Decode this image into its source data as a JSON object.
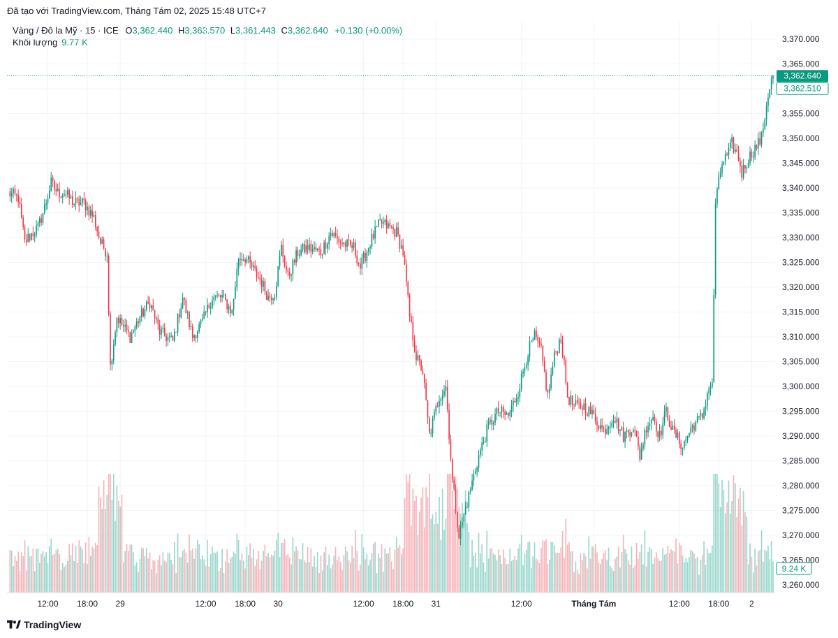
{
  "header": {
    "created_text": "Đã tạo với TradingView.com, Tháng Tám 02, 2025 15:48 UTC+7"
  },
  "legend": {
    "symbol": "Vàng / Đô la Mỹ · 15 · ICE",
    "o_label": "O",
    "o_value": "3,362.440",
    "h_label": "H",
    "h_value": "3,363.570",
    "l_label": "L",
    "l_value": "3,361.443",
    "c_label": "C",
    "c_value": "3,362.640",
    "change": "+0.130 (+0.00%)",
    "volume_label": "Khối lượng",
    "volume_value": "9.77 K"
  },
  "price_tags": {
    "last_price": "3,362.640",
    "prev_price": "3,362.510",
    "volume_tag": "9.24 K"
  },
  "brand": {
    "name": "TradingView"
  },
  "colors": {
    "up": "#089981",
    "down": "#f23645",
    "up_volume": "#9ad7cc",
    "down_volume": "#f7b3b9",
    "grid": "#f0f3fa",
    "text": "#131722"
  },
  "chart_data": {
    "type": "candlestick",
    "interval": "15m",
    "ylim": [
      3258,
      3371
    ],
    "y_ticks": [
      3260,
      3265,
      3270,
      3275,
      3280,
      3285,
      3290,
      3295,
      3300,
      3305,
      3310,
      3315,
      3320,
      3325,
      3330,
      3335,
      3340,
      3345,
      3350,
      3355,
      3360,
      3365,
      3370
    ],
    "y_tick_labels": [
      "3,260.000",
      "3,265.000",
      "3,270.000",
      "3,275.000",
      "3,280.000",
      "3,285.000",
      "3,290.000",
      "3,295.000",
      "3,300.000",
      "3,305.000",
      "3,310.000",
      "3,315.000",
      "3,320.000",
      "3,325.000",
      "3,330.000",
      "3,335.000",
      "3,340.000",
      "3,345.000",
      "3,350.000",
      "3,355.000",
      "3,360.000",
      "3,365.000",
      "3,370.000"
    ],
    "x_ticks": [
      {
        "label": "12:00",
        "index": 24
      },
      {
        "label": "18:00",
        "index": 48
      },
      {
        "label": "29",
        "index": 68
      },
      {
        "label": "12:00",
        "index": 120
      },
      {
        "label": "18:00",
        "index": 144
      },
      {
        "label": "30",
        "index": 164
      },
      {
        "label": "12:00",
        "index": 216
      },
      {
        "label": "18:00",
        "index": 240
      },
      {
        "label": "31",
        "index": 260
      },
      {
        "label": "12:00",
        "index": 312
      },
      {
        "label": "Tháng Tám",
        "index": 356
      },
      {
        "label": "12:00",
        "index": 408
      },
      {
        "label": "18:00",
        "index": 432
      },
      {
        "label": "2",
        "index": 452
      }
    ],
    "close_anchors": [
      [
        0,
        3339
      ],
      [
        6,
        3338
      ],
      [
        10,
        3329
      ],
      [
        12,
        3330
      ],
      [
        18,
        3332
      ],
      [
        22,
        3336
      ],
      [
        26,
        3341
      ],
      [
        30,
        3339
      ],
      [
        34,
        3339
      ],
      [
        40,
        3337
      ],
      [
        46,
        3337
      ],
      [
        52,
        3334
      ],
      [
        56,
        3329
      ],
      [
        60,
        3327
      ],
      [
        62,
        3304
      ],
      [
        66,
        3314
      ],
      [
        70,
        3312
      ],
      [
        74,
        3310
      ],
      [
        80,
        3314
      ],
      [
        86,
        3317
      ],
      [
        92,
        3311
      ],
      [
        100,
        3309
      ],
      [
        106,
        3318
      ],
      [
        112,
        3310
      ],
      [
        118,
        3313
      ],
      [
        124,
        3318
      ],
      [
        130,
        3318
      ],
      [
        136,
        3315
      ],
      [
        140,
        3326
      ],
      [
        144,
        3326
      ],
      [
        148,
        3324
      ],
      [
        154,
        3321
      ],
      [
        158,
        3318
      ],
      [
        162,
        3319
      ],
      [
        166,
        3328
      ],
      [
        170,
        3322
      ],
      [
        176,
        3327
      ],
      [
        182,
        3328
      ],
      [
        190,
        3327
      ],
      [
        196,
        3331
      ],
      [
        202,
        3329
      ],
      [
        210,
        3328
      ],
      [
        214,
        3324
      ],
      [
        220,
        3329
      ],
      [
        226,
        3333
      ],
      [
        232,
        3332
      ],
      [
        236,
        3331
      ],
      [
        240,
        3327
      ],
      [
        244,
        3314
      ],
      [
        248,
        3306
      ],
      [
        252,
        3303
      ],
      [
        256,
        3290
      ],
      [
        262,
        3298
      ],
      [
        266,
        3300
      ],
      [
        270,
        3281
      ],
      [
        274,
        3270
      ],
      [
        280,
        3278
      ],
      [
        286,
        3286
      ],
      [
        292,
        3292
      ],
      [
        298,
        3295
      ],
      [
        304,
        3294
      ],
      [
        310,
        3299
      ],
      [
        316,
        3307
      ],
      [
        320,
        3310
      ],
      [
        324,
        3307
      ],
      [
        328,
        3298
      ],
      [
        332,
        3306
      ],
      [
        336,
        3310
      ],
      [
        340,
        3298
      ],
      [
        344,
        3296
      ],
      [
        350,
        3296
      ],
      [
        356,
        3294
      ],
      [
        362,
        3291
      ],
      [
        368,
        3294
      ],
      [
        374,
        3290
      ],
      [
        380,
        3292
      ],
      [
        384,
        3286
      ],
      [
        388,
        3292
      ],
      [
        392,
        3294
      ],
      [
        396,
        3290
      ],
      [
        400,
        3295
      ],
      [
        404,
        3291
      ],
      [
        410,
        3288
      ],
      [
        416,
        3292
      ],
      [
        422,
        3294
      ],
      [
        426,
        3300
      ],
      [
        428,
        3300
      ],
      [
        430,
        3337
      ],
      [
        434,
        3345
      ],
      [
        438,
        3347
      ],
      [
        440,
        3349
      ],
      [
        444,
        3346
      ],
      [
        446,
        3343
      ],
      [
        450,
        3346
      ],
      [
        454,
        3348
      ],
      [
        458,
        3350
      ],
      [
        462,
        3359
      ],
      [
        465,
        3362.64
      ]
    ],
    "volume_note": "volume histogram rendered beneath price, values in contracts"
  }
}
